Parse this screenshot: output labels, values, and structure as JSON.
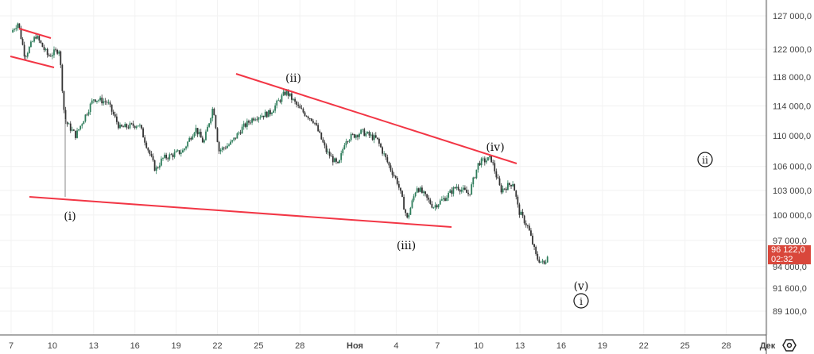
{
  "chart_data": {
    "type": "candlestick",
    "title": "",
    "y_scale": "log",
    "ylim": [
      87000,
      128500
    ],
    "y_ticks": [
      127000,
      122000,
      118000,
      114000,
      110000,
      106000,
      103000,
      100000,
      97000,
      94000,
      91600,
      89100
    ],
    "y_tick_labels": [
      "127 000,0",
      "122 000,0",
      "118 000,0",
      "114 000,0",
      "110 000,0",
      "106 000,0",
      "103 000,0",
      "100 000,0",
      "97 000,0",
      "94 000,0",
      "91 600,0",
      "89 100,0"
    ],
    "x_unit": "days since Oct 7",
    "x_ticks": [
      0,
      3,
      6,
      9,
      12,
      15,
      18,
      21,
      25,
      28,
      31,
      34,
      37,
      40,
      43,
      46,
      49,
      52,
      55
    ],
    "x_tick_labels": [
      "7",
      "10",
      "13",
      "16",
      "19",
      "22",
      "25",
      "28",
      "Ноя",
      "4",
      "7",
      "10",
      "13",
      "16",
      "19",
      "22",
      "25",
      "28",
      "Дек"
    ],
    "series": [
      {
        "name": "price",
        "x": [
          0,
          0.5,
          1,
          1.8,
          2.7,
          3.5,
          3.9,
          4.7,
          6,
          7,
          7.9,
          9.3,
          10.5,
          11,
          12.5,
          13.4,
          14,
          14.7,
          15.1,
          16,
          16.8,
          17.7,
          18.8,
          20,
          21,
          22,
          22.9,
          23.8,
          24.3,
          25.5,
          26.6,
          27.5,
          28.1,
          28.8,
          29.5,
          30.7,
          31.5,
          32.4,
          33.3,
          34,
          34.9,
          35.6,
          36.5,
          36.9,
          37.6,
          38.2,
          38.8,
          39.1
        ],
        "close": [
          124500,
          126000,
          121000,
          124000,
          121000,
          122000,
          112000,
          110000,
          115000,
          114500,
          111000,
          111500,
          105500,
          107000,
          108000,
          111000,
          109000,
          114000,
          108000,
          109000,
          111000,
          112500,
          113000,
          116000,
          113500,
          112000,
          108000,
          106000,
          109500,
          110500,
          109500,
          106000,
          104000,
          99500,
          103500,
          101000,
          102000,
          103500,
          102500,
          106500,
          107000,
          103000,
          104000,
          100500,
          98500,
          95000,
          94200,
          96122
        ]
      }
    ],
    "wave_labels": [
      "(i)",
      "(ii)",
      "(iii)",
      "(iv)",
      "(v)",
      "i",
      "ii"
    ],
    "last_price": {
      "value": "96 122,0",
      "countdown": "02:32",
      "color": "#d9473b"
    },
    "colors": {
      "up": "#2e7d5b",
      "down": "#333333",
      "trendline": "#f23645"
    }
  }
}
